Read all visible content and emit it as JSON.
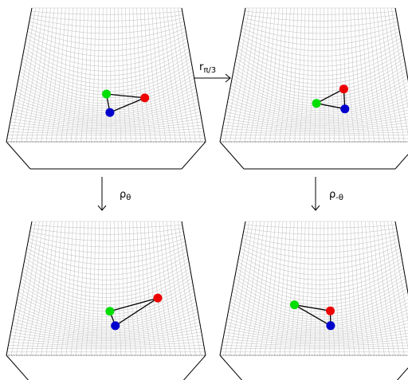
{
  "arrows": {
    "top": {
      "label": "r",
      "subscript": "π/3"
    },
    "left": {
      "label": "ρ",
      "subscript": "θ"
    },
    "right": {
      "label": "ρ",
      "subscript": "-θ"
    }
  },
  "colors": {
    "mesh": "#c8c8c8",
    "frame": "#000000",
    "edge": "#000000",
    "green": "#00dd00",
    "red": "#ee0000",
    "blue": "#0000cc"
  },
  "panels": [
    {
      "id": "original",
      "points": {
        "green": [
          0.5,
          0.42
        ],
        "red": [
          0.72,
          0.5
        ],
        "blue": [
          0.52,
          0.6
        ]
      }
    },
    {
      "id": "rotated",
      "points": {
        "green": [
          0.48,
          0.5
        ],
        "red": [
          0.64,
          0.4
        ],
        "blue": [
          0.64,
          0.58
        ]
      }
    },
    {
      "id": "rho-theta",
      "points": {
        "green": [
          0.52,
          0.45
        ],
        "red": [
          0.8,
          0.43
        ],
        "blue": [
          0.55,
          0.6
        ]
      }
    },
    {
      "id": "rho-neg-theta",
      "points": {
        "green": [
          0.35,
          0.42
        ],
        "red": [
          0.56,
          0.45
        ],
        "blue": [
          0.56,
          0.6
        ]
      }
    }
  ]
}
